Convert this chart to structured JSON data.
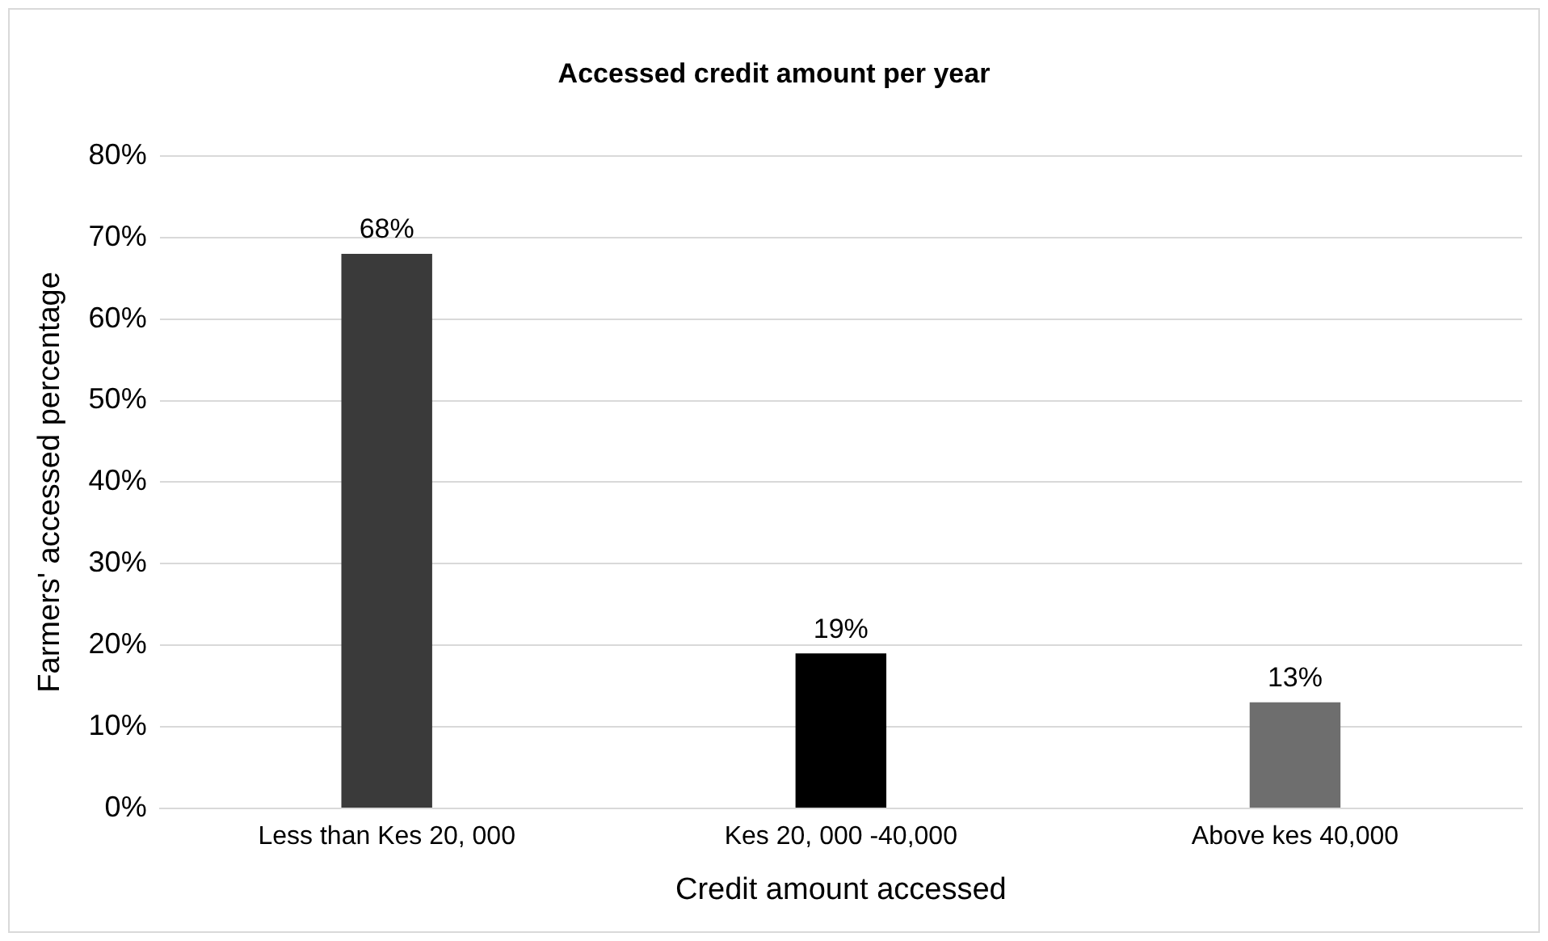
{
  "chart_data": {
    "type": "bar",
    "title": "Accessed credit amount per year",
    "xlabel": "Credit amount accessed",
    "ylabel": "Farmers' accessed percentage",
    "categories": [
      "Less than Kes 20, 000",
      "Kes 20, 000 -40,000",
      "Above kes 40,000"
    ],
    "values": [
      68,
      19,
      13
    ],
    "colors": [
      "#3a3a3a",
      "#000000",
      "#6e6e6e"
    ],
    "value_labels": [
      "68%",
      "19%",
      "13%"
    ],
    "ylim": [
      0,
      80
    ],
    "yticks": [
      {
        "value": 0,
        "label": "0%"
      },
      {
        "value": 10,
        "label": "10%"
      },
      {
        "value": 20,
        "label": "20%"
      },
      {
        "value": 30,
        "label": "30%"
      },
      {
        "value": 40,
        "label": "40%"
      },
      {
        "value": 50,
        "label": "50%"
      },
      {
        "value": 60,
        "label": "60%"
      },
      {
        "value": 70,
        "label": "70%"
      },
      {
        "value": 80,
        "label": "80%"
      }
    ],
    "grid": "y",
    "legend": false
  }
}
